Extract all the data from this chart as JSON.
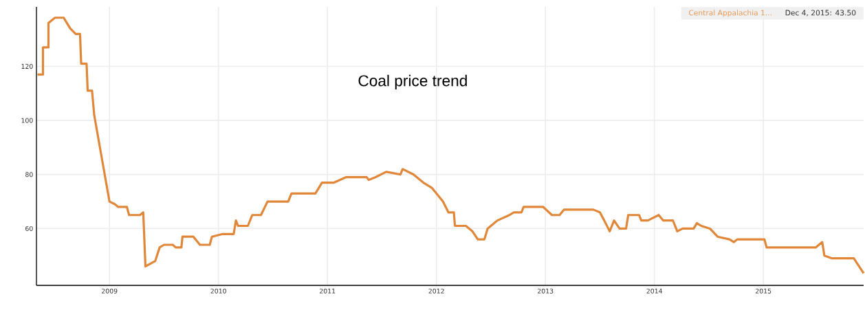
{
  "chart_data": {
    "type": "line",
    "title": "Coal price trend",
    "annotations": [
      "Dec 4, 2015: 43.50"
    ],
    "x": [
      2008.34,
      2008.39,
      2008.39,
      2008.44,
      2008.44,
      2008.5,
      2008.58,
      2008.61,
      2008.64,
      2008.69,
      2008.73,
      2008.74,
      2008.79,
      2008.8,
      2008.84,
      2008.86,
      2009.0,
      2009.05,
      2009.08,
      2009.16,
      2009.18,
      2009.28,
      2009.31,
      2009.33,
      2009.42,
      2009.46,
      2009.5,
      2009.58,
      2009.61,
      2009.66,
      2009.67,
      2009.77,
      2009.83,
      2009.92,
      2009.94,
      2010.04,
      2010.14,
      2010.16,
      2010.18,
      2010.27,
      2010.31,
      2010.39,
      2010.45,
      2010.64,
      2010.67,
      2010.89,
      2010.95,
      2011.06,
      2011.17,
      2011.36,
      2011.38,
      2011.44,
      2011.54,
      2011.67,
      2011.69,
      2011.79,
      2011.88,
      2011.96,
      2012.0,
      2012.06,
      2012.11,
      2012.16,
      2012.17,
      2012.27,
      2012.33,
      2012.38,
      2012.44,
      2012.47,
      2012.53,
      2012.56,
      2012.67,
      2012.71,
      2012.78,
      2012.8,
      2012.98,
      2013.06,
      2013.13,
      2013.17,
      2013.44,
      2013.5,
      2013.54,
      2013.59,
      2013.63,
      2013.68,
      2013.74,
      2013.76,
      2013.86,
      2013.88,
      2013.94,
      2014.04,
      2014.08,
      2014.17,
      2014.21,
      2014.26,
      2014.36,
      2014.39,
      2014.43,
      2014.51,
      2014.58,
      2014.69,
      2014.73,
      2014.76,
      2015.01,
      2015.03,
      2015.48,
      2015.54,
      2015.56,
      2015.63,
      2015.77,
      2015.83,
      2015.92
    ],
    "series": [
      {
        "name": "Central Appalachia 1...",
        "color": "#e0873a",
        "values": [
          117,
          117,
          127,
          127,
          136,
          138,
          138,
          136,
          134,
          132,
          132,
          121,
          121,
          111,
          111,
          102,
          70,
          69,
          68,
          68,
          65,
          65,
          66,
          46,
          48,
          53,
          54,
          54,
          53,
          53,
          57,
          57,
          54,
          54,
          57,
          58,
          58,
          63,
          61,
          61,
          65,
          65,
          70,
          70,
          73,
          73,
          77,
          77,
          79,
          79,
          78,
          79,
          81,
          80,
          82,
          80,
          77,
          75,
          73,
          70,
          66,
          66,
          61,
          61,
          59,
          56,
          56,
          60,
          62,
          63,
          65,
          66,
          66,
          68,
          68,
          65,
          65,
          67,
          67,
          66,
          63,
          59,
          63,
          60,
          60,
          65,
          65,
          63,
          63,
          65,
          63,
          63,
          59,
          60,
          60,
          62,
          61,
          60,
          57,
          56,
          55,
          56,
          56,
          53,
          53,
          55,
          50,
          49,
          49,
          49,
          43.5
        ]
      }
    ],
    "xlim": [
      2008.33,
      2015.92
    ],
    "ylim": [
      39,
      142
    ],
    "xticks": [
      2009,
      2010,
      2011,
      2012,
      2013,
      2014,
      2015
    ],
    "yticks": [
      60,
      80,
      100,
      120
    ],
    "grid": true,
    "legend": "top right",
    "marker": "none",
    "line_style": "solid"
  }
}
